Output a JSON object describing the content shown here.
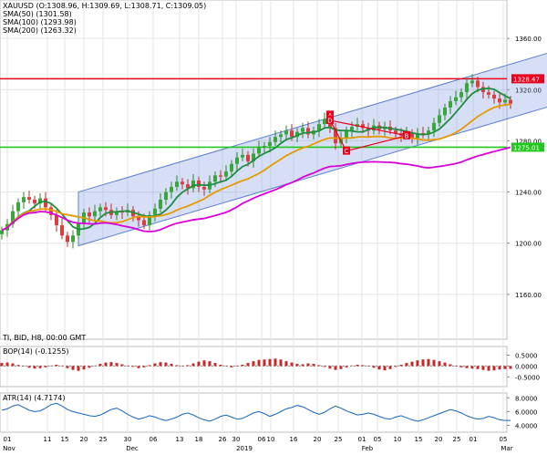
{
  "chart_data": [
    {
      "type": "candlestick",
      "title": "XAUUSD (O:1308.96, H:1309.69, L:1308.71, C:1309.05)",
      "indicators": [
        {
          "name": "SMA(50) (1301.58)",
          "color": "#1e8e3e"
        },
        {
          "name": "SMA(100) (1293.98)",
          "color": "#e69a00"
        },
        {
          "name": "SMA(200) (1263.32)",
          "color": "#d900d9"
        }
      ],
      "ylim": [
        1125,
        1390
      ],
      "y_ticks": [
        1360,
        1320,
        1280,
        1240,
        1200,
        1160
      ],
      "y_tick_labels": [
        "1360.00",
        "1320.00",
        "1280.00",
        "1240.00",
        "1200.00",
        "1160.00"
      ],
      "horizontal_levels": [
        {
          "value": 1328.47,
          "label": "1328.47",
          "color": "#e8001c"
        },
        {
          "value": 1275.01,
          "label": "1275.01",
          "color": "#22c81f"
        }
      ],
      "channel": {
        "start": {
          "x": 14,
          "y_low": 1198,
          "y_high": 1240
        },
        "end": {
          "x": 101,
          "y_low": 1308,
          "y_high": 1350
        }
      },
      "pattern_labels": [
        {
          "text": "A",
          "x": 60,
          "y": 1300
        },
        {
          "text": "D",
          "x": 60,
          "y": 1296
        },
        {
          "text": "C",
          "x": 63,
          "y": 1272
        },
        {
          "text": "B",
          "x": 74,
          "y": 1284
        }
      ],
      "x_tick_labels": [
        "01",
        "11",
        "15",
        "20",
        "25",
        "30",
        "06",
        "13",
        "18",
        "26",
        "30",
        "06",
        "10",
        "16",
        "20",
        "25",
        "01",
        "05",
        "10",
        "15",
        "20",
        "25",
        "01",
        "05"
      ],
      "x_month_labels": [
        "Nov",
        "Dec",
        "2019",
        "Feb",
        "Mar"
      ],
      "footer": "TI, BID, H8, 00:00 GMT",
      "close_series": [
        1210,
        1215,
        1225,
        1232,
        1236,
        1234,
        1231,
        1235,
        1228,
        1222,
        1214,
        1206,
        1201,
        1206,
        1216,
        1224,
        1221,
        1225,
        1228,
        1226,
        1222,
        1225,
        1224,
        1226,
        1221,
        1218,
        1214,
        1222,
        1227,
        1234,
        1240,
        1244,
        1248,
        1246,
        1243,
        1249,
        1244,
        1242,
        1248,
        1253,
        1252,
        1256,
        1262,
        1267,
        1269,
        1264,
        1270,
        1275,
        1276,
        1279,
        1283,
        1285,
        1288,
        1283,
        1287,
        1290,
        1285,
        1288,
        1293,
        1297,
        1290,
        1278,
        1282,
        1288,
        1291,
        1293,
        1290,
        1288,
        1292,
        1289,
        1291,
        1288,
        1286,
        1284,
        1286,
        1282,
        1286,
        1285,
        1288,
        1294,
        1300,
        1306,
        1311,
        1314,
        1318,
        1325,
        1327,
        1322,
        1318,
        1316,
        1313,
        1310,
        1312,
        1309
      ]
    },
    {
      "type": "bar",
      "title": "BOP(14) (-0.1255)",
      "ylim": [
        -0.95,
        0.9
      ],
      "y_ticks": [
        0.5,
        0.0,
        -0.5
      ],
      "y_tick_labels": [
        "0.5000",
        "0.0000",
        "-0.5000"
      ],
      "values": [
        0.14,
        0.16,
        0.12,
        0.05,
        -0.02,
        -0.08,
        -0.12,
        -0.1,
        -0.06,
        0.02,
        0.06,
        0.02,
        -0.1,
        -0.18,
        -0.22,
        -0.16,
        -0.08,
        0.02,
        0.1,
        0.16,
        0.18,
        0.14,
        0.08,
        0.02,
        -0.04,
        -0.1,
        -0.06,
        0.04,
        0.12,
        0.18,
        0.16,
        0.1,
        0.04,
        -0.02,
        0.04,
        0.12,
        0.2,
        0.26,
        0.22,
        0.14,
        0.06,
        0.0,
        -0.06,
        -0.02,
        0.06,
        0.14,
        0.22,
        0.28,
        0.3,
        0.32,
        0.34,
        0.3,
        0.22,
        0.16,
        0.1,
        0.08,
        0.12,
        0.1,
        0.04,
        -0.04,
        -0.12,
        -0.18,
        -0.14,
        -0.06,
        0.02,
        0.06,
        0.04,
        0.0,
        -0.08,
        -0.16,
        -0.2,
        -0.14,
        -0.04,
        0.06,
        0.14,
        0.2,
        0.26,
        0.3,
        0.32,
        0.28,
        0.22,
        0.16,
        0.08,
        0.0,
        -0.06,
        -0.1,
        -0.12,
        -0.14,
        -0.18,
        -0.22,
        -0.2,
        -0.16,
        -0.14,
        -0.13
      ]
    },
    {
      "type": "line",
      "title": "ATR(14) (4.7174)",
      "ylim": [
        3.0,
        8.7
      ],
      "y_ticks": [
        8.0,
        6.0,
        4.0
      ],
      "y_tick_labels": [
        "8.0000",
        "6.0000",
        "4.0000"
      ],
      "values": [
        6.2,
        6.4,
        6.8,
        7.0,
        6.6,
        6.2,
        6.0,
        6.1,
        6.5,
        7.0,
        7.2,
        6.8,
        6.3,
        6.0,
        5.8,
        5.6,
        5.4,
        5.3,
        5.5,
        5.9,
        6.3,
        6.5,
        6.1,
        5.6,
        5.2,
        4.9,
        5.1,
        5.4,
        5.2,
        4.9,
        4.7,
        4.9,
        5.2,
        5.6,
        5.8,
        5.5,
        5.1,
        4.8,
        4.6,
        4.9,
        5.3,
        5.5,
        5.2,
        4.9,
        5.0,
        5.4,
        5.8,
        6.0,
        5.7,
        5.3,
        5.6,
        6.0,
        6.4,
        6.6,
        6.9,
        6.7,
        6.3,
        5.9,
        5.6,
        5.9,
        6.4,
        6.8,
        6.5,
        6.1,
        5.8,
        5.5,
        5.6,
        5.8,
        5.6,
        5.3,
        5.0,
        4.9,
        5.2,
        5.4,
        5.1,
        4.8,
        4.6,
        4.8,
        5.1,
        5.4,
        5.7,
        6.0,
        6.3,
        6.1,
        5.8,
        5.4,
        5.1,
        4.9,
        5.0,
        5.3,
        5.1,
        4.8,
        4.7,
        4.7
      ]
    }
  ]
}
